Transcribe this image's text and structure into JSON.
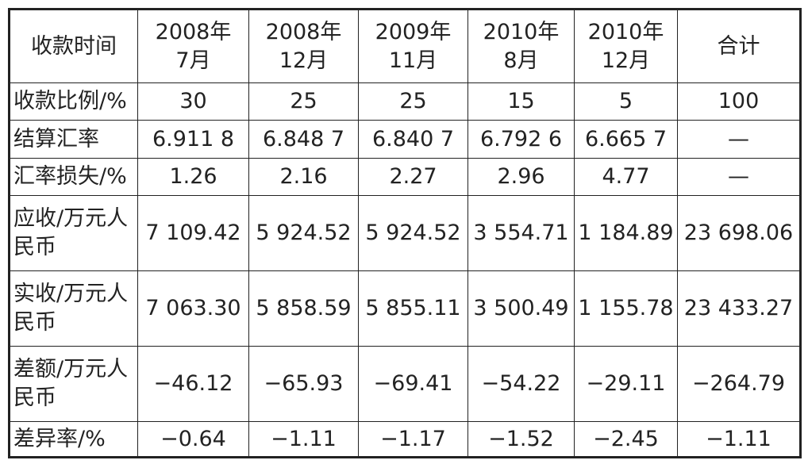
{
  "table": {
    "header": [
      "收款时间",
      "2008年\n7月",
      "2008年\n12月",
      "2009年\n11月",
      "2010年\n8月",
      "2010年\n12月",
      "合计"
    ],
    "rows": [
      [
        "收款比例/%",
        "30",
        "25",
        "25",
        "15",
        "5",
        "100"
      ],
      [
        "结算汇率",
        "6.911 8",
        "6.848 7",
        "6.840 7",
        "6.792 6",
        "6.665 7",
        "—"
      ],
      [
        "汇率损失/%",
        "1.26",
        "2.16",
        "2.27",
        "2.96",
        "4.77",
        "—"
      ],
      [
        "应收/万元人\n民币",
        "7 109.42",
        "5 924.52",
        "5 924.52",
        "3 554.71",
        "1 184.89",
        "23 698.06"
      ],
      [
        "实收/万元人\n民币",
        "7 063.30",
        "5 858.59",
        "5 855.11",
        "3 500.49",
        "1 155.78",
        "23 433.27"
      ],
      [
        "差额/万元人\n民币",
        "−46.12",
        "−65.93",
        "−69.41",
        "−54.22",
        "−29.11",
        "−264.79"
      ],
      [
        "差异率/%",
        "−0.64",
        "−1.11",
        "−1.17",
        "−1.52",
        "−2.45",
        "−1.11"
      ]
    ]
  }
}
